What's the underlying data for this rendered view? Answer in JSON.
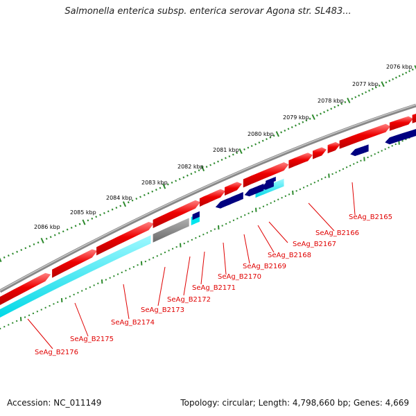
{
  "title": "Salmonella enterica subsp. enterica serovar Agona str. SL483...",
  "footer": {
    "accession": "Accession: NC_011149",
    "summary": "Topology: circular; Length: 4,798,660 bp; Genes: 4,669"
  },
  "colors": {
    "backbone": "#7f7f7f",
    "forward_gene": "#ee0000",
    "reverse_gene": "#000080",
    "cds_highlight": "#00e5ee",
    "pseudo": "#666666",
    "ticks": "#2d8a2d",
    "labels": "#e00000"
  },
  "ruler": [
    {
      "label": "2076 kbp"
    },
    {
      "label": "2077 kbp"
    },
    {
      "label": "2078 kbp"
    },
    {
      "label": "2079 kbp"
    },
    {
      "label": "2080 kbp"
    },
    {
      "label": "2081 kbp"
    },
    {
      "label": "2082 kbp"
    },
    {
      "label": "2083 kbp"
    },
    {
      "label": "2084 kbp"
    },
    {
      "label": "2085 kbp"
    },
    {
      "label": "2086 kbp"
    }
  ],
  "genes": [
    {
      "label": "SeAg_B2165"
    },
    {
      "label": "SeAg_B2166"
    },
    {
      "label": "SeAg_B2167"
    },
    {
      "label": "SeAg_B2168"
    },
    {
      "label": "SeAg_B2169"
    },
    {
      "label": "SeAg_B2170"
    },
    {
      "label": "SeAg_B2171"
    },
    {
      "label": "SeAg_B2172"
    },
    {
      "label": "SeAg_B2173"
    },
    {
      "label": "SeAg_B2174"
    },
    {
      "label": "SeAg_B2175"
    },
    {
      "label": "SeAg_B2176"
    }
  ]
}
